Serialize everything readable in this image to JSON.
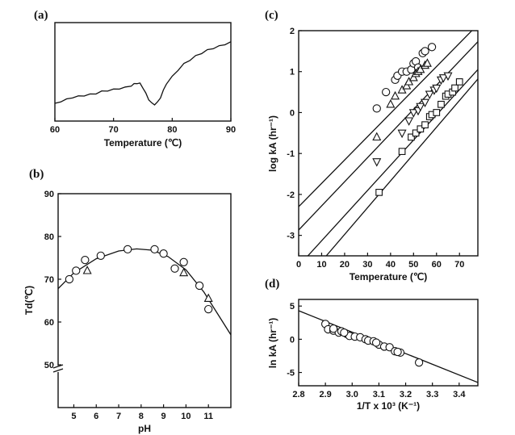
{
  "chart_data": [
    {
      "panel": "(a)",
      "type": "line",
      "xlabel": "Temperature (℃)",
      "ylabel": "",
      "xlim": [
        60,
        90
      ],
      "xticks": [
        "60",
        "70",
        "80",
        "90"
      ],
      "ylim": [
        0,
        100
      ],
      "y_ticks_shown": false,
      "series": [
        {
          "x": [
            60,
            61,
            62,
            63,
            64,
            65,
            66,
            67,
            68,
            69,
            70,
            71,
            72,
            73,
            73.5,
            74,
            74.5,
            75,
            75.5,
            76,
            76.5,
            77,
            77.5,
            78,
            78.5,
            79,
            80,
            81,
            82,
            83,
            84,
            85,
            86,
            87,
            88,
            89,
            90
          ],
          "y": [
            18,
            20,
            22,
            24,
            25,
            26,
            27,
            28,
            30,
            31,
            32,
            33,
            34,
            36,
            37.5,
            38.5,
            38,
            34,
            28,
            22,
            18,
            17,
            19,
            24,
            31,
            38,
            45,
            52,
            58,
            62,
            66,
            69,
            72,
            74,
            76,
            78,
            80
          ]
        }
      ]
    },
    {
      "panel": "(b)",
      "type": "scatter",
      "xlabel": "pH",
      "ylabel": "Td(℃)",
      "xlim": [
        4.3,
        12
      ],
      "ylim": [
        40,
        90
      ],
      "xticks": [
        "5",
        "6",
        "7",
        "8",
        "9",
        "10",
        "11"
      ],
      "yticks": [
        "50",
        "60",
        "70",
        "80",
        "90"
      ],
      "axis_break": true,
      "series": [
        {
          "marker": "circle",
          "points": [
            [
              4.8,
              70
            ],
            [
              5.1,
              72
            ],
            [
              5.5,
              74.5
            ],
            [
              6.2,
              75.5
            ],
            [
              7.4,
              77
            ],
            [
              8.6,
              77
            ],
            [
              9,
              76
            ],
            [
              9.5,
              72.5
            ],
            [
              9.9,
              74
            ],
            [
              10.6,
              68.5
            ],
            [
              11,
              63
            ]
          ]
        },
        {
          "marker": "triangle",
          "points": [
            [
              5.6,
              72
            ],
            [
              9.9,
              71.5
            ],
            [
              11,
              65.5
            ]
          ]
        },
        {
          "marker": "line",
          "points": [
            [
              4.3,
              67.8
            ],
            [
              5,
              71.5
            ],
            [
              6,
              74.8
            ],
            [
              7,
              76.6
            ],
            [
              7.8,
              77.1
            ],
            [
              8.5,
              76.8
            ],
            [
              9.2,
              75.3
            ],
            [
              10,
              72.2
            ],
            [
              10.8,
              67
            ],
            [
              11.4,
              62
            ],
            [
              12,
              57
            ]
          ]
        }
      ]
    },
    {
      "panel": "(c)",
      "type": "scatter",
      "xlabel": "Temperature (℃)",
      "ylabel": "log kA (hr⁻¹)",
      "xlim": [
        0,
        78
      ],
      "ylim": [
        -3.5,
        2
      ],
      "xticks": [
        "0",
        "10",
        "20",
        "30",
        "40",
        "50",
        "60",
        "70"
      ],
      "yticks": [
        "-3",
        "-2",
        "-1",
        "0",
        "1",
        "2"
      ],
      "series": [
        {
          "marker": "circle",
          "points": [
            [
              34,
              0.1
            ],
            [
              38,
              0.5
            ],
            [
              42,
              0.8
            ],
            [
              43,
              0.9
            ],
            [
              45,
              1
            ],
            [
              47,
              1
            ],
            [
              49,
              1.05
            ],
            [
              50,
              1.2
            ],
            [
              51,
              1.25
            ],
            [
              52,
              1.1
            ],
            [
              54,
              1.45
            ],
            [
              55,
              1.5
            ],
            [
              58,
              1.6
            ]
          ]
        },
        {
          "marker": "triangle",
          "points": [
            [
              34,
              -0.6
            ],
            [
              40,
              0.2
            ],
            [
              42,
              0.4
            ],
            [
              45,
              0.55
            ],
            [
              47,
              0.65
            ],
            [
              48,
              0.75
            ],
            [
              50,
              0.85
            ],
            [
              51,
              0.95
            ],
            [
              52,
              1
            ],
            [
              53,
              1.05
            ],
            [
              55,
              1.15
            ],
            [
              56,
              1.2
            ]
          ]
        },
        {
          "marker": "triangle-down",
          "points": [
            [
              34,
              -1.2
            ],
            [
              45,
              -0.5
            ],
            [
              48,
              -0.2
            ],
            [
              50,
              0
            ],
            [
              52,
              0.05
            ],
            [
              53,
              0.15
            ],
            [
              55,
              0.25
            ],
            [
              57,
              0.45
            ],
            [
              59,
              0.55
            ],
            [
              60,
              0.6
            ],
            [
              62,
              0.8
            ],
            [
              63,
              0.85
            ],
            [
              65,
              0.9
            ]
          ]
        },
        {
          "marker": "square",
          "points": [
            [
              35,
              -1.95
            ],
            [
              45,
              -0.95
            ],
            [
              49,
              -0.6
            ],
            [
              51,
              -0.5
            ],
            [
              53,
              -0.4
            ],
            [
              55,
              -0.3
            ],
            [
              57,
              -0.1
            ],
            [
              58,
              -0.05
            ],
            [
              60,
              0
            ],
            [
              62,
              0.2
            ],
            [
              64,
              0.4
            ],
            [
              65,
              0.45
            ],
            [
              67,
              0.5
            ],
            [
              68,
              0.6
            ],
            [
              70,
              0.75
            ]
          ]
        },
        {
          "marker": "line",
          "points": [
            [
              0,
              -2.3
            ],
            [
              78,
              2.15
            ]
          ]
        },
        {
          "marker": "line",
          "points": [
            [
              0,
              -2.87
            ],
            [
              78,
              1.73
            ]
          ]
        },
        {
          "marker": "line",
          "points": [
            [
              4,
              -3.5
            ],
            [
              78,
              1.05
            ]
          ]
        },
        {
          "marker": "line",
          "points": [
            [
              12,
              -3.5
            ],
            [
              78,
              0.82
            ]
          ]
        }
      ]
    },
    {
      "panel": "(d)",
      "type": "scatter",
      "xlabel": "1/T x 10³ (K⁻¹)",
      "ylabel": "ln kA (hr⁻¹)",
      "xlim": [
        2.8,
        3.47
      ],
      "ylim": [
        -7,
        6
      ],
      "xticks": [
        "2.8",
        "2.9",
        "3.0",
        "3.1",
        "3.2",
        "3.3",
        "3.4"
      ],
      "yticks": [
        "-5",
        "0",
        "5"
      ],
      "series": [
        {
          "marker": "circle",
          "points": [
            [
              2.9,
              2.3
            ],
            [
              2.91,
              1.5
            ],
            [
              2.93,
              1.3
            ],
            [
              2.95,
              1
            ],
            [
              2.96,
              1.2
            ],
            [
              2.98,
              0.8
            ],
            [
              2.99,
              0.5
            ],
            [
              3.01,
              0.4
            ],
            [
              3.03,
              0.3
            ],
            [
              3.05,
              0
            ],
            [
              3.06,
              -0.2
            ],
            [
              3.08,
              -0.3
            ],
            [
              3.1,
              -0.8
            ],
            [
              3.12,
              -1.1
            ],
            [
              3.14,
              -1.2
            ],
            [
              3.16,
              -1.8
            ],
            [
              3.18,
              -2
            ],
            [
              3.25,
              -3.5
            ],
            [
              2.93,
              1.6
            ],
            [
              2.97,
              1
            ],
            [
              3.09,
              -0.5
            ],
            [
              3.17,
              -1.9
            ]
          ]
        },
        {
          "marker": "line",
          "points": [
            [
              2.8,
              4.3
            ],
            [
              3.47,
              -6.5
            ]
          ]
        }
      ]
    }
  ]
}
